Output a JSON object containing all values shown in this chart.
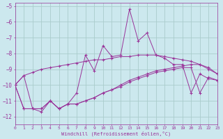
{
  "xlabel": "Windchill (Refroidissement éolien,°C)",
  "bg_color": "#cce8ee",
  "grid_color": "#aacccc",
  "line_color": "#993399",
  "xlim": [
    0,
    23
  ],
  "ylim": [
    -12.5,
    -4.8
  ],
  "xticks": [
    0,
    1,
    2,
    3,
    4,
    5,
    6,
    7,
    8,
    9,
    10,
    11,
    12,
    13,
    14,
    15,
    16,
    17,
    18,
    19,
    20,
    21,
    22,
    23
  ],
  "yticks": [
    -12,
    -11,
    -10,
    -9,
    -8,
    -7,
    -6,
    -5
  ],
  "lines": [
    [
      -10.0,
      -9.4,
      -11.5,
      -11.5,
      -11.0,
      -11.5,
      -11.2,
      -10.5,
      -8.1,
      -9.1,
      -7.5,
      -8.2,
      -8.1,
      -5.2,
      -7.2,
      -6.7,
      -8.1,
      -8.3,
      -8.7,
      -8.7,
      -10.5,
      -9.3,
      -9.6,
      -9.7
    ],
    [
      -10.0,
      -9.4,
      -9.2,
      -9.0,
      -8.9,
      -8.8,
      -8.7,
      -8.6,
      -8.5,
      -8.4,
      -8.4,
      -8.3,
      -8.2,
      -8.2,
      -8.1,
      -8.1,
      -8.1,
      -8.2,
      -8.3,
      -8.4,
      -8.5,
      -8.7,
      -8.9,
      -9.3
    ],
    [
      -10.0,
      -11.5,
      -11.5,
      -11.5,
      -11.0,
      -11.5,
      -11.2,
      -11.2,
      -11.0,
      -10.8,
      -10.5,
      -10.3,
      -10.0,
      -9.7,
      -9.5,
      -9.3,
      -9.1,
      -9.0,
      -8.9,
      -8.8,
      -8.7,
      -8.7,
      -9.0,
      -9.3
    ],
    [
      -10.0,
      -11.5,
      -11.5,
      -11.7,
      -11.0,
      -11.5,
      -11.2,
      -11.2,
      -11.0,
      -10.8,
      -10.5,
      -10.3,
      -10.1,
      -9.8,
      -9.6,
      -9.4,
      -9.2,
      -9.1,
      -9.0,
      -8.9,
      -8.9,
      -10.5,
      -9.5,
      -9.7
    ]
  ]
}
